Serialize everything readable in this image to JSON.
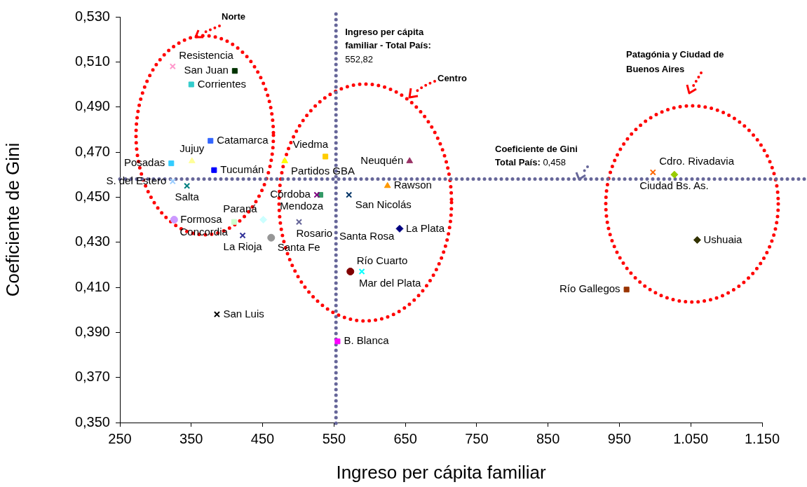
{
  "chart_data": {
    "type": "scatter",
    "xlabel": "Ingreso per cápita familiar",
    "ylabel": "Coeficiente de Gini",
    "xlim": [
      250,
      1150
    ],
    "xticks": [
      250,
      350,
      450,
      550,
      650,
      750,
      850,
      950,
      {
        "value": 1050,
        "label": "1.050"
      },
      {
        "value": 1150,
        "label": "1.150"
      }
    ],
    "ylim": [
      0.35,
      0.53
    ],
    "yticks": [
      {
        "value": 0.35,
        "label": "0,350"
      },
      {
        "value": 0.37,
        "label": "0,370"
      },
      {
        "value": 0.39,
        "label": "0,390"
      },
      {
        "value": 0.41,
        "label": "0,410"
      },
      {
        "value": 0.43,
        "label": "0,430"
      },
      {
        "value": 0.45,
        "label": "0,450"
      },
      {
        "value": 0.47,
        "label": "0,470"
      },
      {
        "value": 0.49,
        "label": "0,490"
      },
      {
        "value": 0.51,
        "label": "0,510"
      },
      {
        "value": 0.53,
        "label": "0,530"
      }
    ],
    "grid": false,
    "ref_lines": [
      {
        "axis": "x",
        "value": 552.82,
        "label": "Ingreso per cápita familiar - Total País: 552,82",
        "color": "#666699",
        "line_style": "dotted"
      },
      {
        "axis": "y",
        "value": 0.458,
        "label": "Coeficiente de Gini Total País: 0,458",
        "color": "#666699",
        "line_style": "dotted"
      }
    ],
    "annotations": [
      "Norte",
      "Centro",
      "Patagónia y Ciudad de Buenos Aires",
      "Santa Rosa"
    ],
    "series": [
      {
        "name": "Resistencia",
        "color": "#ff99cc",
        "marker": "cross",
        "x": [
          324
        ],
        "values": [
          0.508
        ]
      },
      {
        "name": "San Juan",
        "color": "#003300",
        "marker": "square",
        "x": [
          411
        ],
        "values": [
          0.506
        ]
      },
      {
        "name": "Corrientes",
        "color": "#33cccc",
        "marker": "square",
        "x": [
          350
        ],
        "values": [
          0.5
        ]
      },
      {
        "name": "Catamarca",
        "color": "#3366ff",
        "marker": "square",
        "x": [
          377
        ],
        "values": [
          0.475
        ]
      },
      {
        "name": "Posadas",
        "color": "#33ccff",
        "marker": "square",
        "x": [
          322
        ],
        "values": [
          0.465
        ]
      },
      {
        "name": "Jujuy",
        "color": "#ffff99",
        "marker": "triangle",
        "x": [
          351
        ],
        "values": [
          0.466
        ]
      },
      {
        "name": "Tucumán",
        "color": "#0000ff",
        "marker": "square",
        "x": [
          382
        ],
        "values": [
          0.462
        ]
      },
      {
        "name": "S. del Estero",
        "color": "#99ccff",
        "marker": "cross",
        "x": [
          324
        ],
        "values": [
          0.457
        ]
      },
      {
        "name": "Salta",
        "color": "#008080",
        "marker": "cross",
        "x": [
          344
        ],
        "values": [
          0.455
        ]
      },
      {
        "name": "Partidos GBA",
        "color": "#ffff00",
        "marker": "triangle",
        "x": [
          481
        ],
        "values": [
          0.466
        ]
      },
      {
        "name": "Viedma",
        "color": "#ffcc00",
        "marker": "square",
        "x": [
          538
        ],
        "values": [
          0.468
        ]
      },
      {
        "name": "Córdoba",
        "color": "#800080",
        "marker": "cross",
        "x": [
          526
        ],
        "values": [
          0.451
        ]
      },
      {
        "name": "Mendoza",
        "color": "#339966",
        "marker": "square",
        "x": [
          531
        ],
        "values": [
          0.451
        ]
      },
      {
        "name": "San Nicolás",
        "color": "#003366",
        "marker": "cross",
        "x": [
          571
        ],
        "values": [
          0.451
        ]
      },
      {
        "name": "Rawson",
        "color": "#ff9900",
        "marker": "triangle",
        "x": [
          625
        ],
        "values": [
          0.455
        ]
      },
      {
        "name": "Neuquén",
        "color": "#993366",
        "marker": "triangle",
        "x": [
          656
        ],
        "values": [
          0.466
        ]
      },
      {
        "name": "Formosa",
        "color": "#cc99ff",
        "marker": "circle",
        "x": [
          326
        ],
        "values": [
          0.44
        ]
      },
      {
        "name": "Concordia",
        "color": "#ccffcc",
        "marker": "square",
        "x": [
          410
        ],
        "values": [
          0.439
        ]
      },
      {
        "name": "Paraná",
        "color": "#ccffff",
        "marker": "diamond",
        "x": [
          451
        ],
        "values": [
          0.44
        ]
      },
      {
        "name": "Rosario",
        "color": "#666699",
        "marker": "cross",
        "x": [
          501
        ],
        "values": [
          0.439
        ]
      },
      {
        "name": "La Rioja",
        "color": "#333399",
        "marker": "cross",
        "x": [
          422
        ],
        "values": [
          0.433
        ]
      },
      {
        "name": "Santa Fe",
        "color": "#969696",
        "marker": "circle",
        "x": [
          462
        ],
        "values": [
          0.432
        ]
      },
      {
        "name": "La Plata",
        "color": "#000080",
        "marker": "diamond",
        "x": [
          642
        ],
        "values": [
          0.436
        ]
      },
      {
        "name": "Río Cuarto",
        "color": "#800000",
        "marker": "circle",
        "x": [
          573
        ],
        "values": [
          0.417
        ]
      },
      {
        "name": "Mar del Plata",
        "color": "#00ffff",
        "marker": "cross",
        "x": [
          589
        ],
        "values": [
          0.417
        ]
      },
      {
        "name": "San Luis",
        "color": "#000000",
        "marker": "cross",
        "x": [
          386
        ],
        "values": [
          0.398
        ]
      },
      {
        "name": "B. Blanca",
        "color": "#ff00ff",
        "marker": "square",
        "x": [
          555
        ],
        "values": [
          0.386
        ]
      },
      {
        "name": "Cdro. Rivadavia",
        "color": "#ff6600",
        "marker": "cross",
        "x": [
          997
        ],
        "values": [
          0.461
        ]
      },
      {
        "name": "Ciudad Bs. As.",
        "color": "#99cc00",
        "marker": "diamond",
        "x": [
          1027
        ],
        "values": [
          0.46
        ]
      },
      {
        "name": "Ushuaia",
        "color": "#333300",
        "marker": "diamond",
        "x": [
          1059
        ],
        "values": [
          0.431
        ]
      },
      {
        "name": "Río Gallegos",
        "color": "#993300",
        "marker": "square",
        "x": [
          960
        ],
        "values": [
          0.409
        ]
      }
    ]
  }
}
